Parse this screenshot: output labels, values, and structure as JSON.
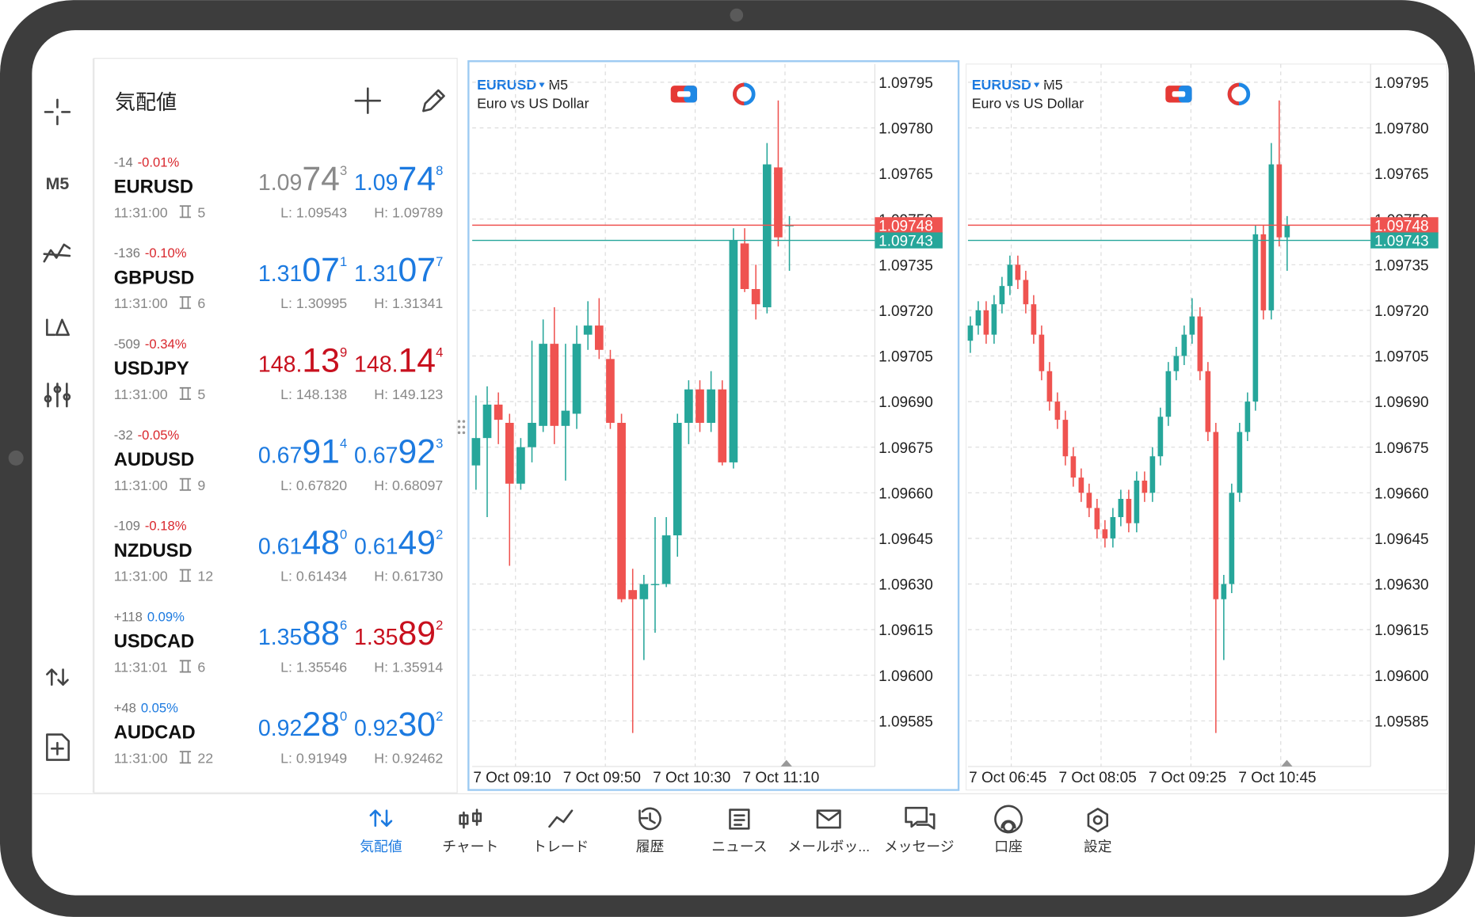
{
  "toolbar": {
    "timeframe": "M5"
  },
  "quotes": {
    "title": "気配値",
    "rows": [
      {
        "change_points": "-14",
        "change_percent": "-0.01%",
        "change_color": "#d9262c",
        "symbol": "EURUSD",
        "time": "11:31:00",
        "spread": "5",
        "bid": {
          "main": "1.09",
          "big": "74",
          "sup": "3"
        },
        "bid_color": "#8a8a8a",
        "ask": {
          "main": "1.09",
          "big": "74",
          "sup": "8"
        },
        "ask_color": "#1c7ae0",
        "low": "L: 1.09543",
        "high": "H: 1.09789"
      },
      {
        "change_points": "-136",
        "change_percent": "-0.10%",
        "change_color": "#d9262c",
        "symbol": "GBPUSD",
        "time": "11:31:00",
        "spread": "6",
        "bid": {
          "main": "1.31",
          "big": "07",
          "sup": "1"
        },
        "bid_color": "#1c7ae0",
        "ask": {
          "main": "1.31",
          "big": "07",
          "sup": "7"
        },
        "ask_color": "#1c7ae0",
        "low": "L: 1.30995",
        "high": "H: 1.31341"
      },
      {
        "change_points": "-509",
        "change_percent": "-0.34%",
        "change_color": "#d9262c",
        "symbol": "USDJPY",
        "time": "11:31:00",
        "spread": "5",
        "bid": {
          "main": "148.",
          "big": "13",
          "sup": "9"
        },
        "bid_color": "#c8101e",
        "ask": {
          "main": "148.",
          "big": "14",
          "sup": "4"
        },
        "ask_color": "#c8101e",
        "low": "L: 148.138",
        "high": "H: 149.123"
      },
      {
        "change_points": "-32",
        "change_percent": "-0.05%",
        "change_color": "#d9262c",
        "symbol": "AUDUSD",
        "time": "11:31:00",
        "spread": "9",
        "bid": {
          "main": "0.67",
          "big": "91",
          "sup": "4"
        },
        "bid_color": "#1c7ae0",
        "ask": {
          "main": "0.67",
          "big": "92",
          "sup": "3"
        },
        "ask_color": "#1c7ae0",
        "low": "L: 0.67820",
        "high": "H: 0.68097"
      },
      {
        "change_points": "-109",
        "change_percent": "-0.18%",
        "change_color": "#d9262c",
        "symbol": "NZDUSD",
        "time": "11:31:00",
        "spread": "12",
        "bid": {
          "main": "0.61",
          "big": "48",
          "sup": "0"
        },
        "bid_color": "#1c7ae0",
        "ask": {
          "main": "0.61",
          "big": "49",
          "sup": "2"
        },
        "ask_color": "#1c7ae0",
        "low": "L: 0.61434",
        "high": "H: 0.61730"
      },
      {
        "change_points": "+118",
        "change_percent": "0.09%",
        "change_color": "#1c7ae0",
        "symbol": "USDCAD",
        "time": "11:31:01",
        "spread": "6",
        "bid": {
          "main": "1.35",
          "big": "88",
          "sup": "6"
        },
        "bid_color": "#1c7ae0",
        "ask": {
          "main": "1.35",
          "big": "89",
          "sup": "2"
        },
        "ask_color": "#c8101e",
        "low": "L: 1.35546",
        "high": "H: 1.35914"
      },
      {
        "change_points": "+48",
        "change_percent": "0.05%",
        "change_color": "#1c7ae0",
        "symbol": "AUDCAD",
        "time": "11:31:00",
        "spread": "22",
        "bid": {
          "main": "0.92",
          "big": "28",
          "sup": "0"
        },
        "bid_color": "#1c7ae0",
        "ask": {
          "main": "0.92",
          "big": "30",
          "sup": "2"
        },
        "ask_color": "#1c7ae0",
        "low": "L: 0.91949",
        "high": "H: 0.92462"
      }
    ]
  },
  "chart_data": [
    {
      "type": "candlestick",
      "symbol": "EURUSD",
      "timeframe": "M5",
      "description": "Euro vs US Dollar",
      "x_labels": [
        "7 Oct 09:10",
        "7 Oct 09:50",
        "7 Oct 10:30",
        "7 Oct 11:10"
      ],
      "ylim": [
        1.0957,
        1.09801
      ],
      "yticks": [
        1.09795,
        {
          "value": 1.0978,
          "label": "1.09780"
        },
        1.09765,
        {
          "value": 1.0975,
          "label": "1.09750"
        },
        1.09735,
        {
          "value": 1.0972,
          "label": "1.09720"
        },
        1.09705,
        {
          "value": 1.0969,
          "label": "1.09690"
        },
        1.09675,
        {
          "value": 1.0966,
          "label": "1.09660"
        },
        1.09645,
        {
          "value": 1.0963,
          "label": "1.09630"
        },
        1.09615,
        {
          "value": 1.096,
          "label": "1.09600"
        },
        1.09585
      ],
      "grid": true,
      "up_color": "#26a69a",
      "down_color": "#ef5350",
      "ask_line": 1.09748,
      "bid_line": 1.09743,
      "candles": [
        [
          1.09669,
          1.09692,
          1.09661,
          1.09678
        ],
        [
          1.09678,
          1.09695,
          1.09652,
          1.09689
        ],
        [
          1.09689,
          1.09693,
          1.09676,
          1.09684
        ],
        [
          1.09683,
          1.09686,
          1.09636,
          1.09663
        ],
        [
          1.09663,
          1.09678,
          1.09661,
          1.09675
        ],
        [
          1.09675,
          1.0971,
          1.0967,
          1.09683
        ],
        [
          1.09682,
          1.09717,
          1.0968,
          1.09709
        ],
        [
          1.09709,
          1.09721,
          1.09676,
          1.09682
        ],
        [
          1.09682,
          1.09709,
          1.09664,
          1.09687
        ],
        [
          1.09686,
          1.09715,
          1.09681,
          1.09709
        ],
        [
          1.09712,
          1.09723,
          1.09707,
          1.09715
        ],
        [
          1.09715,
          1.09724,
          1.09704,
          1.09707
        ],
        [
          1.09704,
          1.09707,
          1.09681,
          1.09683
        ],
        [
          1.09683,
          1.09686,
          1.09624,
          1.09625
        ],
        [
          1.09628,
          1.09635,
          1.09581,
          1.09625
        ],
        [
          1.09625,
          1.09633,
          1.09605,
          1.0963
        ],
        [
          1.0963,
          1.09652,
          1.09614,
          1.0963
        ],
        [
          1.0963,
          1.09652,
          1.09629,
          1.09646
        ],
        [
          1.09646,
          1.09686,
          1.09639,
          1.09683
        ],
        [
          1.09683,
          1.09697,
          1.09676,
          1.09694
        ],
        [
          1.09694,
          1.09697,
          1.0968,
          1.09683
        ],
        [
          1.09683,
          1.097,
          1.0968,
          1.09694
        ],
        [
          1.09694,
          1.09697,
          1.09669,
          1.0967
        ],
        [
          1.0967,
          1.09747,
          1.09668,
          1.09743
        ],
        [
          1.09742,
          1.09747,
          1.09726,
          1.09727
        ],
        [
          1.09727,
          1.09735,
          1.09717,
          1.09722
        ],
        [
          1.09721,
          1.09775,
          1.09719,
          1.09768
        ],
        [
          1.09767,
          1.09789,
          1.09741,
          1.09744
        ],
        [
          1.09748,
          1.09751,
          1.09733,
          1.09748
        ]
      ]
    },
    {
      "type": "candlestick",
      "symbol": "EURUSD",
      "timeframe": "M5",
      "description": "Euro vs US Dollar",
      "x_labels": [
        "7 Oct 06:45",
        "7 Oct 08:05",
        "7 Oct 09:25",
        "7 Oct 10:45"
      ],
      "ylim": [
        1.0957,
        1.09801
      ],
      "yticks": [
        1.09795,
        {
          "value": 1.0978,
          "label": "1.09780"
        },
        1.09765,
        {
          "value": 1.0975,
          "label": "1.09750"
        },
        1.09735,
        {
          "value": 1.0972,
          "label": "1.09720"
        },
        1.09705,
        {
          "value": 1.0969,
          "label": "1.09690"
        },
        1.09675,
        {
          "value": 1.0966,
          "label": "1.09660"
        },
        1.09645,
        {
          "value": 1.0963,
          "label": "1.09630"
        },
        1.09615,
        {
          "value": 1.096,
          "label": "1.09600"
        },
        1.09585
      ],
      "grid": true,
      "up_color": "#26a69a",
      "down_color": "#ef5350",
      "ask_line": 1.09748,
      "bid_line": 1.09743,
      "candles": [
        [
          1.0971,
          1.09718,
          1.09706,
          1.09715
        ],
        [
          1.09715,
          1.09723,
          1.09712,
          1.0972
        ],
        [
          1.0972,
          1.09723,
          1.09709,
          1.09712
        ],
        [
          1.09712,
          1.09725,
          1.09709,
          1.09722
        ],
        [
          1.09722,
          1.09731,
          1.09719,
          1.09728
        ],
        [
          1.09728,
          1.09738,
          1.09725,
          1.09735
        ],
        [
          1.09735,
          1.09738,
          1.09727,
          1.0973
        ],
        [
          1.0973,
          1.09733,
          1.09719,
          1.09722
        ],
        [
          1.09722,
          1.09725,
          1.09709,
          1.09712
        ],
        [
          1.09712,
          1.09715,
          1.09697,
          1.097
        ],
        [
          1.097,
          1.09703,
          1.09687,
          1.0969
        ],
        [
          1.0969,
          1.09693,
          1.09681,
          1.09684
        ],
        [
          1.09684,
          1.09687,
          1.09669,
          1.09672
        ],
        [
          1.09672,
          1.09675,
          1.09662,
          1.09665
        ],
        [
          1.09665,
          1.09668,
          1.09657,
          1.0966
        ],
        [
          1.0966,
          1.09663,
          1.09652,
          1.09655
        ],
        [
          1.09655,
          1.09658,
          1.09645,
          1.09648
        ],
        [
          1.09648,
          1.09651,
          1.09642,
          1.09645
        ],
        [
          1.09645,
          1.09655,
          1.09642,
          1.09652
        ],
        [
          1.09652,
          1.09661,
          1.09649,
          1.09658
        ],
        [
          1.09658,
          1.09661,
          1.09647,
          1.0965
        ],
        [
          1.0965,
          1.09667,
          1.09647,
          1.09664
        ],
        [
          1.09664,
          1.09667,
          1.09657,
          1.0966
        ],
        [
          1.0966,
          1.09675,
          1.09657,
          1.09672
        ],
        [
          1.09672,
          1.09688,
          1.09669,
          1.09685
        ],
        [
          1.09685,
          1.09703,
          1.09682,
          1.097
        ],
        [
          1.097,
          1.09708,
          1.09697,
          1.09705
        ],
        [
          1.09705,
          1.09715,
          1.09702,
          1.09712
        ],
        [
          1.09712,
          1.09724,
          1.09709,
          1.09718
        ],
        [
          1.09718,
          1.09721,
          1.09697,
          1.097
        ],
        [
          1.097,
          1.09703,
          1.09677,
          1.0968
        ],
        [
          1.0968,
          1.09683,
          1.09581,
          1.09625
        ],
        [
          1.09625,
          1.09633,
          1.09605,
          1.0963
        ],
        [
          1.0963,
          1.09663,
          1.09627,
          1.0966
        ],
        [
          1.0966,
          1.09683,
          1.09657,
          1.0968
        ],
        [
          1.0968,
          1.09693,
          1.09677,
          1.0969
        ],
        [
          1.0969,
          1.09748,
          1.09687,
          1.09745
        ],
        [
          1.09745,
          1.09748,
          1.09717,
          1.0972
        ],
        [
          1.0972,
          1.09775,
          1.09717,
          1.09768
        ],
        [
          1.09768,
          1.09789,
          1.09741,
          1.09744
        ],
        [
          1.09744,
          1.09751,
          1.09733,
          1.09748
        ]
      ]
    }
  ],
  "nav": [
    "気配値",
    "チャート",
    "トレード",
    "履歴",
    "ニュース",
    "メールボッ...",
    "メッセージ",
    "口座",
    "設定"
  ]
}
